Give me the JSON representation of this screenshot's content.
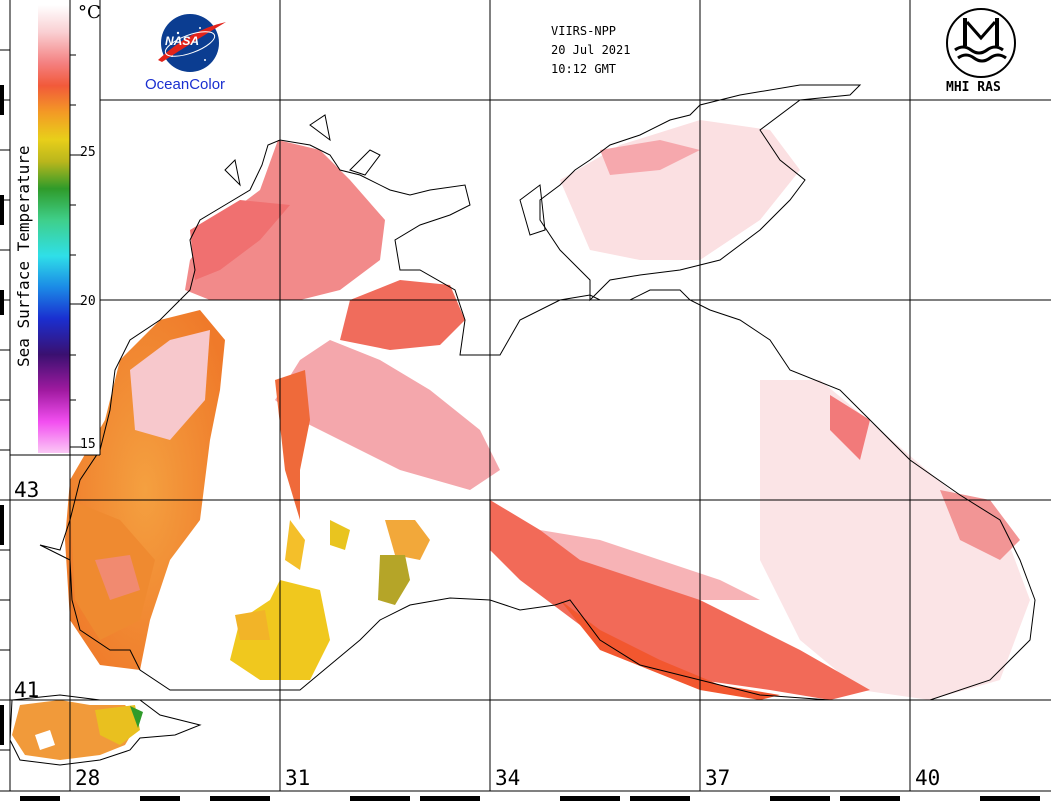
{
  "header": {
    "satellite": "VIIRS-NPP",
    "date": "20 Jul 2021",
    "time": "10:12 GMT"
  },
  "logos": {
    "nasa_text": "NASA",
    "oceancolor": "OceanColor",
    "mhi_text": "MHI RAS"
  },
  "legend": {
    "title": "Sea Surface Temperature",
    "unit": "°C",
    "ticks": [
      "25",
      "20",
      "15"
    ]
  },
  "grid": {
    "latitudes": [
      "43",
      "41"
    ],
    "longitudes": [
      "28",
      "31",
      "34",
      "37",
      "40"
    ]
  },
  "colors": {
    "warm_white": "#ffffff",
    "pink": "#f7a0a8",
    "salmon": "#f06b6b",
    "red_orange": "#f2573f",
    "orange": "#f28a2a",
    "yellow": "#e8d21a",
    "olive": "#a9a630",
    "green": "#2f9b2a",
    "nasa_blue": "#0b3d91",
    "nasa_red": "#e2231a",
    "oceancolor_blue": "#1a2fd0"
  },
  "icons": [
    "nasa-logo-icon",
    "mhi-ras-logo-icon"
  ]
}
